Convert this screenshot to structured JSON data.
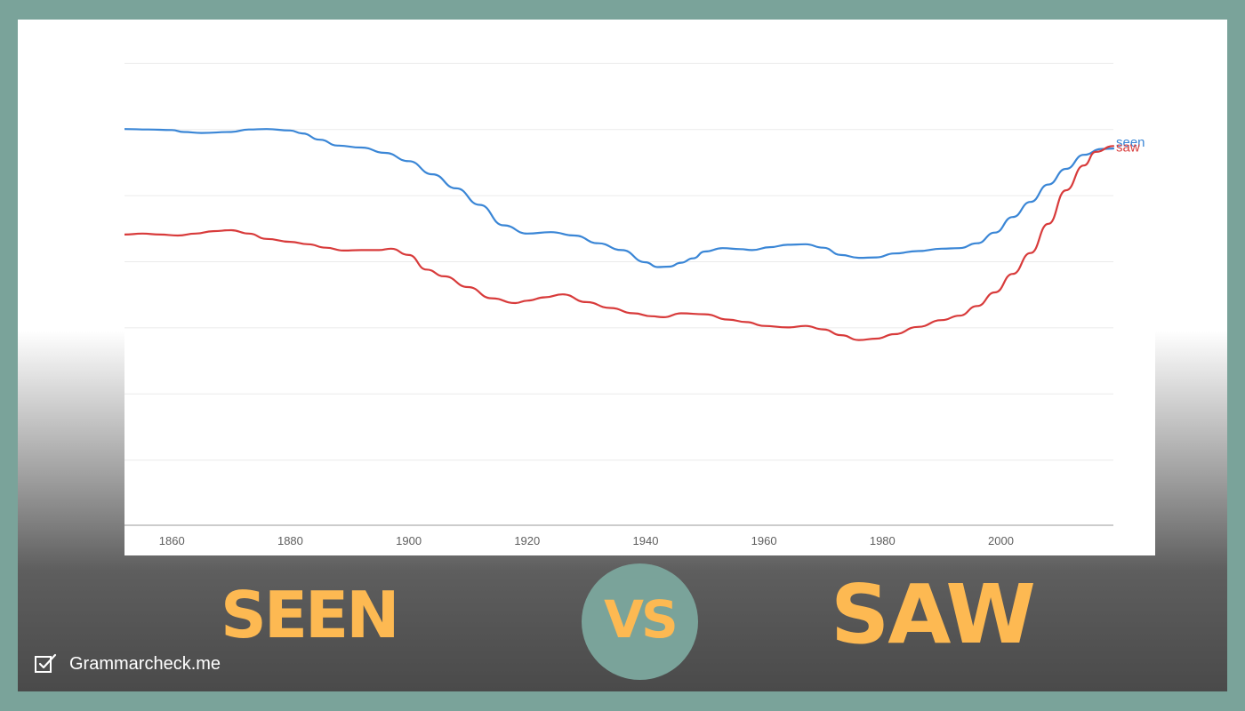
{
  "chart_data": {
    "type": "line",
    "x_ticks": [
      1860,
      1880,
      1900,
      1920,
      1940,
      1960,
      1980,
      2000
    ],
    "xlim": [
      1852,
      2019
    ],
    "grid": true,
    "series": [
      {
        "name": "seen",
        "color": "#3a86d6",
        "x": [
          1852,
          1856,
          1860,
          1862,
          1865,
          1870,
          1873,
          1876,
          1880,
          1882,
          1885,
          1888,
          1892,
          1896,
          1900,
          1904,
          1908,
          1912,
          1916,
          1920,
          1924,
          1928,
          1932,
          1936,
          1940,
          1942,
          1944,
          1946,
          1948,
          1950,
          1953,
          1956,
          1958,
          1961,
          1964,
          1967,
          1970,
          1973,
          1976,
          1979,
          1982,
          1986,
          1990,
          1993,
          1996,
          1999,
          2002,
          2005,
          2008,
          2011,
          2014,
          2017,
          2019
        ],
        "y": [
          0.815,
          0.814,
          0.813,
          0.809,
          0.807,
          0.809,
          0.814,
          0.815,
          0.812,
          0.806,
          0.793,
          0.781,
          0.777,
          0.766,
          0.749,
          0.722,
          0.693,
          0.659,
          0.617,
          0.6,
          0.603,
          0.596,
          0.58,
          0.566,
          0.541,
          0.531,
          0.532,
          0.54,
          0.549,
          0.563,
          0.57,
          0.568,
          0.566,
          0.572,
          0.577,
          0.578,
          0.571,
          0.556,
          0.55,
          0.551,
          0.559,
          0.564,
          0.569,
          0.57,
          0.58,
          0.602,
          0.634,
          0.665,
          0.701,
          0.733,
          0.762,
          0.774,
          0.775
        ]
      },
      {
        "name": "saw",
        "color": "#d83b3b",
        "x": [
          1852,
          1855,
          1858,
          1861,
          1864,
          1867,
          1870,
          1873,
          1876,
          1880,
          1883,
          1886,
          1889,
          1892,
          1895,
          1897,
          1900,
          1903,
          1906,
          1910,
          1914,
          1918,
          1920,
          1923,
          1926,
          1930,
          1934,
          1938,
          1941,
          1943,
          1946,
          1950,
          1954,
          1957,
          1960,
          1964,
          1967,
          1970,
          1973,
          1976,
          1979,
          1982,
          1986,
          1990,
          1993,
          1996,
          1999,
          2002,
          2005,
          2008,
          2011,
          2014,
          2016,
          2019
        ],
        "y": [
          0.598,
          0.6,
          0.598,
          0.596,
          0.6,
          0.605,
          0.607,
          0.6,
          0.589,
          0.583,
          0.578,
          0.571,
          0.565,
          0.566,
          0.566,
          0.569,
          0.556,
          0.526,
          0.512,
          0.49,
          0.467,
          0.457,
          0.462,
          0.469,
          0.475,
          0.459,
          0.447,
          0.436,
          0.43,
          0.428,
          0.436,
          0.434,
          0.423,
          0.418,
          0.41,
          0.407,
          0.41,
          0.403,
          0.391,
          0.381,
          0.384,
          0.393,
          0.408,
          0.422,
          0.431,
          0.451,
          0.479,
          0.517,
          0.56,
          0.62,
          0.689,
          0.74,
          0.768,
          0.78
        ]
      }
    ]
  },
  "words": {
    "left": "SEEN",
    "vs": "VS",
    "right": "SAW"
  },
  "brand": {
    "name": "Grammarcheck.me"
  },
  "colors": {
    "background": "#7aa39a",
    "accent": "#fdb952"
  }
}
